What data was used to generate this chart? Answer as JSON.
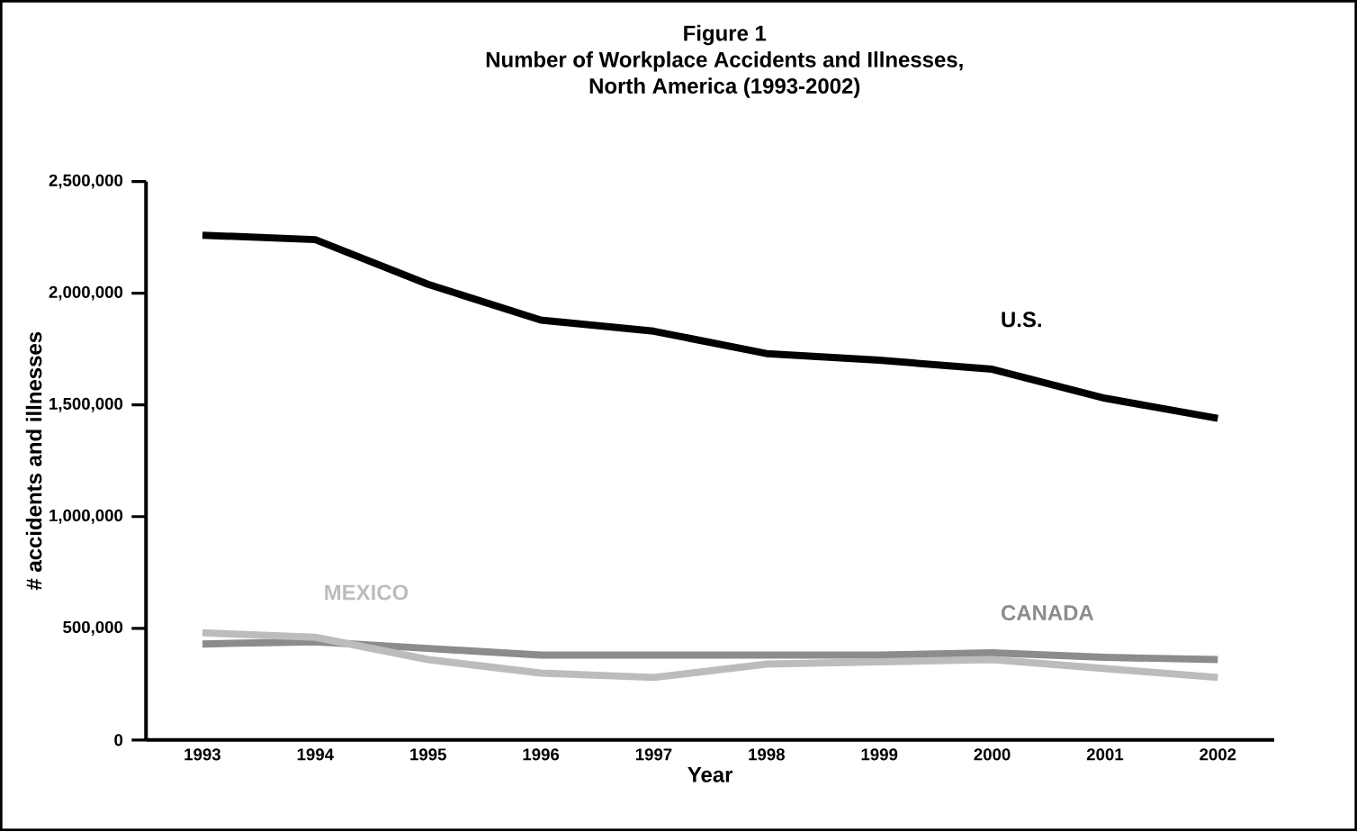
{
  "chart_data": {
    "type": "line",
    "title": "Figure 1\nNumber of Workplace Accidents and Illnesses,\nNorth America (1993-2002)",
    "xlabel": "Year",
    "ylabel": "# accidents and illnesses",
    "categories": [
      "1993",
      "1994",
      "1995",
      "1996",
      "1997",
      "1998",
      "1999",
      "2000",
      "2001",
      "2002"
    ],
    "series": [
      {
        "name": "U.S.",
        "color": "#000000",
        "values": [
          2260000,
          2240000,
          2040000,
          1880000,
          1830000,
          1730000,
          1700000,
          1660000,
          1530000,
          1440000
        ]
      },
      {
        "name": "CANADA",
        "color": "#8c8c8c",
        "values": [
          430000,
          440000,
          410000,
          380000,
          380000,
          380000,
          380000,
          390000,
          370000,
          360000
        ]
      },
      {
        "name": "MEXICO",
        "color": "#bcbcbc",
        "values": [
          480000,
          460000,
          360000,
          300000,
          280000,
          340000,
          350000,
          360000,
          320000,
          280000
        ]
      }
    ],
    "ylim": [
      0,
      2500000
    ],
    "yticks": [
      0,
      {
        "value": 500000,
        "label": "500,000"
      },
      {
        "value": 1000000,
        "label": "1,000,000"
      },
      {
        "value": 1500000,
        "label": "1,500,000"
      },
      {
        "value": 2000000,
        "label": "2,000,000"
      },
      {
        "value": 2500000,
        "label": "2,500,000"
      }
    ],
    "grid": false,
    "legend": false,
    "marker": "none",
    "line_style": "solid"
  }
}
